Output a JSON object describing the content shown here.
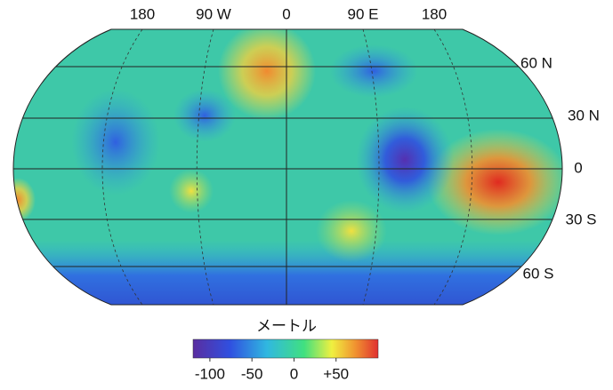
{
  "map": {
    "longitude_labels": [
      "180",
      "90 W",
      "0",
      "90 E",
      "180"
    ],
    "latitude_labels": [
      "60 N",
      "30 N",
      "0",
      "30 S",
      "60 S"
    ],
    "colorbar": {
      "title": "メートル",
      "lim": [
        -120,
        100
      ],
      "ticks": [
        -100,
        -50,
        0,
        {
          "value": 50,
          "label": "+50"
        }
      ]
    }
  }
}
